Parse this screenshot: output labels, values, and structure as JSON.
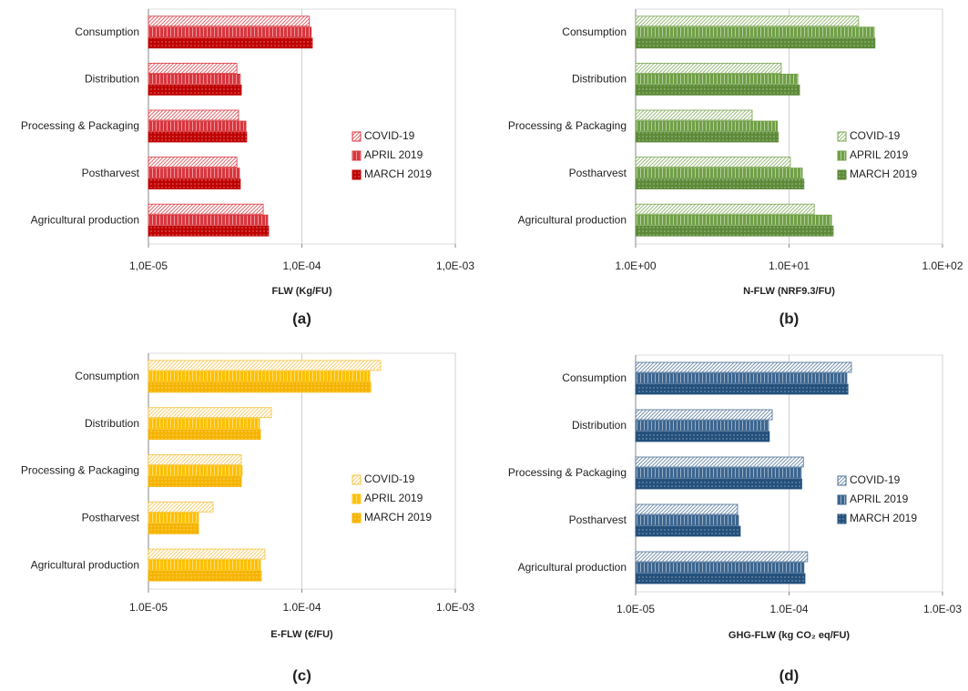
{
  "chart_data": [
    {
      "type": "bar",
      "orientation": "horizontal",
      "panel_label": "(a)",
      "xlabel": "FLW (Kg/FU)",
      "categories": [
        "Consumption",
        "Distribution",
        "Processing & Packaging",
        "Postharvest",
        "Agricultural production"
      ],
      "series": [
        {
          "name": "COVID-19",
          "color": "#d9363e",
          "values": [
            0.000112,
            3.77e-05,
            3.87e-05,
            3.77e-05,
            5.6e-05
          ]
        },
        {
          "name": "APRIL 2019",
          "color": "#d9363e",
          "values": [
            0.000115,
            3.97e-05,
            4.32e-05,
            3.92e-05,
            5.99e-05
          ]
        },
        {
          "name": "MARCH 2019",
          "color": "#c00000",
          "values": [
            0.000117,
            4.03e-05,
            4.37e-05,
            3.97e-05,
            6.07e-05
          ]
        }
      ],
      "xlim": [
        1e-05,
        0.001
      ],
      "xlog": true,
      "grid": true,
      "legend": "right",
      "xticks": [
        {
          "value": 1e-05,
          "label": "1,0E-05"
        },
        {
          "value": 0.0001,
          "label": "1,0E-04"
        },
        {
          "value": 0.001,
          "label": "1,0E-03"
        }
      ]
    },
    {
      "type": "bar",
      "orientation": "horizontal",
      "panel_label": "(b)",
      "xlabel": "N-FLW (NRF9.3/FU)",
      "categories": [
        "Consumption",
        "Distribution",
        "Processing & Packaging",
        "Postharvest",
        "Agricultural production"
      ],
      "series": [
        {
          "name": "COVID-19",
          "color": "#7aa552",
          "values": [
            28.4,
            8.9,
            5.75,
            10.2,
            14.6
          ]
        },
        {
          "name": "APRIL 2019",
          "color": "#70a046",
          "values": [
            35.9,
            11.4,
            8.4,
            12.2,
            18.9
          ]
        },
        {
          "name": "MARCH 2019",
          "color": "#5d8a38",
          "values": [
            36.3,
            11.7,
            8.5,
            12.5,
            19.4
          ]
        }
      ],
      "xlim": [
        1,
        100
      ],
      "xlog": true,
      "grid": true,
      "legend": "right",
      "xticks": [
        {
          "value": 1,
          "label": "1.0E+00"
        },
        {
          "value": 10,
          "label": "1.0E+01"
        },
        {
          "value": 100,
          "label": "1.0E+02"
        }
      ]
    },
    {
      "type": "bar",
      "orientation": "horizontal",
      "panel_label": "(c)",
      "xlabel": "E-FLW (€/FU)",
      "categories": [
        "Consumption",
        "Distribution",
        "Processing & Packaging",
        "Postharvest",
        "Agricultural production"
      ],
      "series": [
        {
          "name": "COVID-19",
          "color": "#f5c242",
          "values": [
            0.000326,
            6.33e-05,
            4.03e-05,
            2.64e-05,
            5.75e-05
          ]
        },
        {
          "name": "APRIL 2019",
          "color": "#ffc000",
          "values": [
            0.000277,
            5.3e-05,
            4.08e-05,
            2.12e-05,
            5.37e-05
          ]
        },
        {
          "name": "MARCH 2019",
          "color": "#f5b400",
          "values": [
            0.000281,
            5.37e-05,
            4.03e-05,
            2.12e-05,
            5.44e-05
          ]
        }
      ],
      "xlim": [
        1e-05,
        0.001
      ],
      "xlog": true,
      "grid": true,
      "legend": "right",
      "xticks": [
        {
          "value": 1e-05,
          "label": "1.0E-05"
        },
        {
          "value": 0.0001,
          "label": "1.0E-04"
        },
        {
          "value": 0.001,
          "label": "1.0E-03"
        }
      ]
    },
    {
      "type": "bar",
      "orientation": "horizontal",
      "panel_label": "(d)",
      "xlabel": "GHG-FLW (kg CO₂ eq/FU)",
      "categories": [
        "Consumption",
        "Distribution",
        "Processing & Packaging",
        "Postharvest",
        "Agricultural production"
      ],
      "series": [
        {
          "name": "COVID-19",
          "color": "#4a6f96",
          "values": [
            0.000255,
            7.77e-05,
            0.000124,
            4.62e-05,
            0.000132
          ]
        },
        {
          "name": "APRIL 2019",
          "color": "#3c6690",
          "values": [
            0.000238,
            7.35e-05,
            0.00012,
            4.68e-05,
            0.000125
          ]
        },
        {
          "name": "MARCH 2019",
          "color": "#24507c",
          "values": [
            0.000242,
            7.44e-05,
            0.000121,
            4.81e-05,
            0.000127
          ]
        }
      ],
      "xlim": [
        1e-05,
        0.001
      ],
      "xlog": true,
      "grid": true,
      "legend": "right",
      "xticks": [
        {
          "value": 1e-05,
          "label": "1.0E-05"
        },
        {
          "value": 0.0001,
          "label": "1.0E-04"
        },
        {
          "value": 0.001,
          "label": "1.0E-03"
        }
      ]
    }
  ]
}
